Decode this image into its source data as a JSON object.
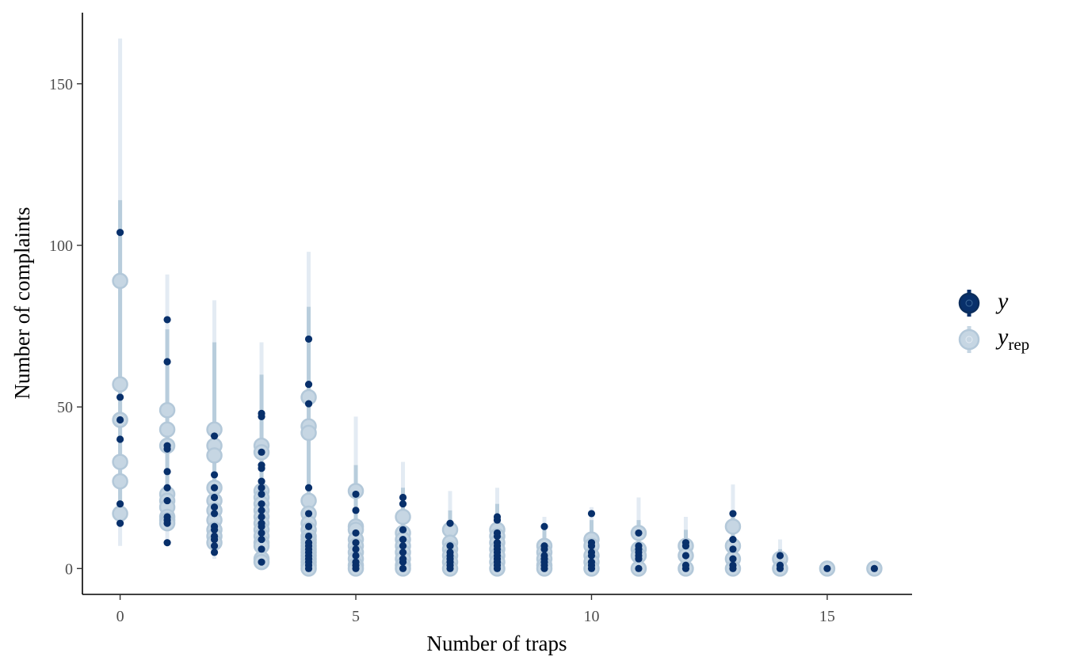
{
  "chart_data": {
    "type": "scatter",
    "title": "",
    "xlabel": "Number of traps",
    "ylabel": "Number of complaints",
    "xlim": [
      -0.8,
      16.8
    ],
    "ylim": [
      -8,
      172
    ],
    "x_ticks": [
      0,
      5,
      10,
      15
    ],
    "y_ticks": [
      0,
      50,
      100,
      150
    ],
    "grid": false,
    "legend_position": "right",
    "legend": [
      {
        "key": "y",
        "symbol": "y",
        "sub": "",
        "color": "#08306b"
      },
      {
        "key": "yrep",
        "symbol": "y",
        "sub": "rep",
        "color": "#c6d6e3"
      }
    ],
    "colors": {
      "y": "#08306b",
      "yrep_fill": "#c6d6e3",
      "yrep_stroke": "#b3c8d9",
      "interval_outer": "#e3ebf3",
      "interval_inner": "#b8cddc"
    },
    "groups": [
      {
        "x": 0,
        "y": [
          104,
          53,
          46,
          40,
          20,
          14
        ],
        "yrep": [
          89,
          57,
          46,
          33,
          27,
          17
        ],
        "interval_outer": [
          7,
          164
        ],
        "interval_inner": [
          14,
          114
        ]
      },
      {
        "x": 1,
        "y": [
          77,
          64,
          38,
          37,
          30,
          25,
          21,
          16,
          15,
          14,
          8
        ],
        "yrep": [
          49,
          43,
          38,
          23,
          21,
          19,
          16,
          15,
          14
        ],
        "interval_outer": [
          8,
          91
        ],
        "interval_inner": [
          13,
          74
        ]
      },
      {
        "x": 2,
        "y": [
          41,
          29,
          25,
          22,
          19,
          17,
          13,
          12,
          10,
          9,
          7,
          5
        ],
        "yrep": [
          43,
          38,
          35,
          25,
          21,
          18,
          15,
          12,
          10,
          8
        ],
        "interval_outer": [
          3,
          83
        ],
        "interval_inner": [
          6,
          70
        ]
      },
      {
        "x": 3,
        "y": [
          48,
          47,
          36,
          32,
          31,
          27,
          25,
          23,
          20,
          18,
          16,
          14,
          13,
          11,
          9,
          6,
          2
        ],
        "yrep": [
          38,
          36,
          24,
          22,
          20,
          18,
          16,
          14,
          12,
          10,
          8,
          7,
          3,
          2
        ],
        "interval_outer": [
          1,
          70
        ],
        "interval_inner": [
          2,
          60
        ]
      },
      {
        "x": 4,
        "y": [
          71,
          57,
          51,
          25,
          17,
          13,
          10,
          8,
          7,
          6,
          5,
          4,
          3,
          2,
          1,
          0
        ],
        "yrep": [
          53,
          44,
          42,
          21,
          17,
          14,
          12,
          10,
          9,
          8,
          7,
          6,
          5,
          4,
          3,
          2,
          1,
          0
        ],
        "interval_outer": [
          0,
          98
        ],
        "interval_inner": [
          0,
          81
        ]
      },
      {
        "x": 5,
        "y": [
          23,
          18,
          11,
          8,
          6,
          4,
          2,
          1,
          0
        ],
        "yrep": [
          24,
          13,
          12,
          9,
          7,
          5,
          3,
          1,
          0
        ],
        "interval_outer": [
          0,
          47
        ],
        "interval_inner": [
          0,
          32
        ]
      },
      {
        "x": 6,
        "y": [
          22,
          20,
          12,
          9,
          7,
          5,
          3,
          2,
          0
        ],
        "yrep": [
          16,
          11,
          9,
          7,
          5,
          3,
          1,
          0
        ],
        "interval_outer": [
          0,
          33
        ],
        "interval_inner": [
          0,
          25
        ]
      },
      {
        "x": 7,
        "y": [
          14,
          7,
          5,
          4,
          3,
          2,
          1,
          0
        ],
        "yrep": [
          12,
          8,
          6,
          4,
          2,
          0
        ],
        "interval_outer": [
          0,
          24
        ],
        "interval_inner": [
          0,
          18
        ]
      },
      {
        "x": 8,
        "y": [
          16,
          15,
          11,
          10,
          8,
          7,
          6,
          5,
          4,
          3,
          2,
          1,
          0
        ],
        "yrep": [
          12,
          10,
          8,
          6,
          4,
          2,
          0
        ],
        "interval_outer": [
          0,
          25
        ],
        "interval_inner": [
          0,
          20
        ]
      },
      {
        "x": 9,
        "y": [
          13,
          7,
          6,
          4,
          3,
          2,
          1,
          0
        ],
        "yrep": [
          7,
          5,
          3,
          1,
          0
        ],
        "interval_outer": [
          0,
          16
        ],
        "interval_inner": [
          0,
          12
        ]
      },
      {
        "x": 10,
        "y": [
          17,
          8,
          7,
          5,
          4,
          2,
          1,
          0
        ],
        "yrep": [
          9,
          7,
          4,
          2,
          0
        ],
        "interval_outer": [
          0,
          19
        ],
        "interval_inner": [
          0,
          15
        ]
      },
      {
        "x": 11,
        "y": [
          11,
          7,
          6,
          5,
          4,
          3,
          0
        ],
        "yrep": [
          11,
          6,
          4,
          0
        ],
        "interval_outer": [
          0,
          22
        ],
        "interval_inner": [
          0,
          15
        ]
      },
      {
        "x": 12,
        "y": [
          8,
          7,
          4,
          1,
          0
        ],
        "yrep": [
          7,
          4,
          0
        ],
        "interval_outer": [
          0,
          16
        ],
        "interval_inner": [
          0,
          12
        ]
      },
      {
        "x": 13,
        "y": [
          17,
          9,
          6,
          3,
          1,
          0
        ],
        "yrep": [
          13,
          7,
          3,
          0
        ],
        "interval_outer": [
          0,
          26
        ],
        "interval_inner": [
          0,
          18
        ]
      },
      {
        "x": 14,
        "y": [
          4,
          1,
          0
        ],
        "yrep": [
          3,
          0
        ],
        "interval_outer": [
          0,
          9
        ],
        "interval_inner": [
          0,
          6
        ]
      },
      {
        "x": 15,
        "y": [
          0
        ],
        "yrep": [
          0
        ],
        "interval_outer": [
          0,
          1
        ],
        "interval_inner": [
          0,
          1
        ]
      },
      {
        "x": 16,
        "y": [
          0
        ],
        "yrep": [
          0
        ],
        "interval_outer": [
          0,
          1
        ],
        "interval_inner": [
          0,
          1
        ]
      }
    ]
  }
}
